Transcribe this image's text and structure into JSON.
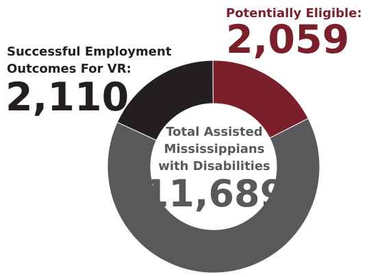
{
  "chart_data": {
    "type": "pie",
    "hole": "donut",
    "series": [
      {
        "label": "Successful Employment Outcomes For VR:",
        "value": 2110,
        "value_text": "2,110",
        "color": "#231f20"
      },
      {
        "label": "Potentially Eligible:",
        "value": 2059,
        "value_text": "2,059",
        "color": "#7b1f2a"
      },
      {
        "value": 7520,
        "color": "#58595b"
      }
    ],
    "center": {
      "label_lines": [
        "Total Assisted",
        "Mississippians",
        "with Disabilities"
      ],
      "value_text": "11,689",
      "value": 11689
    }
  }
}
